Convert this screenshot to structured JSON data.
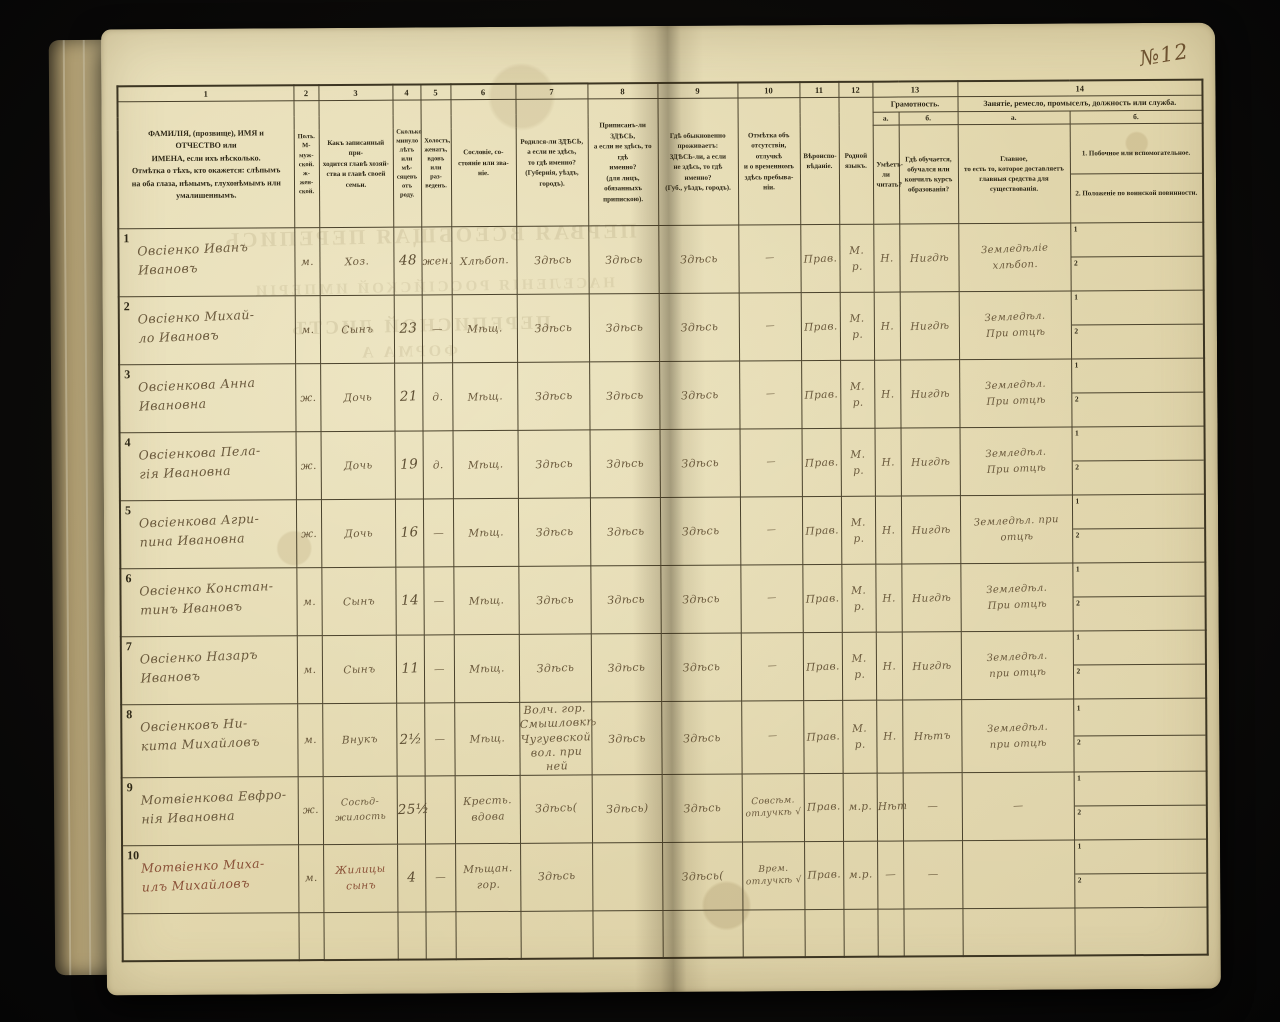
{
  "photo": {
    "page_number_annotation": "№12",
    "bleed_through_lines": {
      "l1": "ПЕРВАЯ ВСЕОБЩАЯ ПЕРЕПИСЬ",
      "l2": "НАСЕЛЕНІЯ РОССІЙСКОЙ ИМПЕРІИ",
      "l3": "ПЕРЕПИСНОЙ ЛИСТЪ",
      "l4": "ФОРМА А"
    }
  },
  "table": {
    "header": {
      "nums": {
        "c1": "1",
        "c2": "2",
        "c3": "3",
        "c4": "4",
        "c5": "5",
        "c6": "6",
        "c7": "7",
        "c8": "8",
        "c9": "9",
        "c10": "10",
        "c11": "11",
        "c12": "12",
        "c13": "13",
        "c14": "14"
      },
      "labels": {
        "c1": "ФАМИЛІЯ, (прозвище), ИМЯ и ОТЧЕСТВО или\nИМЕНА, если ихъ нѣсколько.\nОтмѣтка о тѣхъ, кто окажется: слѣпымъ\nна оба глаза, нѣмымъ, глухонѣмымъ или\nумалишеннымъ.",
        "c2": "Полъ.\nМ-муж-\nской.\nж-жен-\nской.",
        "c3": "Какъ записанный при-\nходится главѣ хозяй-\nства и главѣ своей\nсемьи.",
        "c4": "Сколько\nминуло\nлѣтъ\nили мѣ-\nсяцевъ\nотъ роду.",
        "c5": "Холостъ,\nженатъ,\nвдовъ\nили раз-\nведенъ.",
        "c6": "Сословіе, со-\nстояніе или зва-\nніе.",
        "c7": "Родился-ли ЗДѢСЬ,\nа если не здѣсь,\nто гдѣ именно?\n(Губернія, уѣздъ, городъ).",
        "c8": "Приписанъ-ли ЗДѢСЬ,\nа если не здѣсь, то гдѣ\nименно?\n(для лицъ, обязанныхъ\nприпискою).",
        "c9": "Гдѣ обыкновенно\nпроживаетъ:\nЗДѢСЬ-ли, а если\nне здѣсь, то гдѣ\nименно?\n(Губ., уѣздъ, городъ).",
        "c10": "Отмѣтка объ\nотсутствіи, отлучкѣ\nи о временномъ\nздѣсь пребыва-\nніи.",
        "c11": "Вѣроиспо-\nвѣданіе.",
        "c12": "Родной\nязыкъ."
      },
      "col13": {
        "group": "Грамотность.",
        "a_letter": "а.",
        "b_letter": "б.",
        "a_label": "Умѣетъ-\nли\nчитать?",
        "b_label": "Гдѣ обучается,\nобучался или\nкончилъ курсъ\nобразованія?"
      },
      "col14": {
        "group": "Занятіе, ремесло, промыселъ, должность или служба.",
        "a_letter": "а.",
        "b_letter": "б.",
        "a_label": "Главное,\nто есть то, которое доставляетъ\nглавныя средства для существованія.",
        "b_label_1": "1.  Побочное или вспомогательное.",
        "b_label_2": "2.  Положеніе по воинской повинности."
      }
    },
    "rows": [
      {
        "num": "1",
        "name": "Овсіенко Иванъ\nИвановъ",
        "sex": "м.",
        "relation": "Хоз.",
        "age": "48",
        "marital": "жен.",
        "estate": "Хлѣбоп.",
        "born": "Здѣсь",
        "registered": "Здѣсь",
        "resides": "Здѣсь",
        "absence": "—",
        "religion": "Прав.",
        "language": "М.\nр.",
        "reads": "Н.",
        "school": "Нигдѣ",
        "occupation": "Земледѣліе\nхлѣбоп.",
        "side1": "",
        "side2": ""
      },
      {
        "num": "2",
        "name": "Овсіенко Михай-\nло Ивановъ",
        "sex": "м.",
        "relation": "Сынъ",
        "age": "23",
        "marital": "—",
        "estate": "Мѣщ.",
        "born": "Здѣсь",
        "registered": "Здѣсь",
        "resides": "Здѣсь",
        "absence": "—",
        "religion": "Прав.",
        "language": "М.\nр.",
        "reads": "Н.",
        "school": "Нигдѣ",
        "occupation": "Земледѣл.\nПри отцѣ",
        "side1": "",
        "side2": ""
      },
      {
        "num": "3",
        "name": "Овсіенкова Анна\nИвановна",
        "sex": "ж.",
        "relation": "Дочь",
        "age": "21",
        "marital": "д.",
        "estate": "Мѣщ.",
        "born": "Здѣсь",
        "registered": "Здѣсь",
        "resides": "Здѣсь",
        "absence": "—",
        "religion": "Прав.",
        "language": "М.\nр.",
        "reads": "Н.",
        "school": "Нигдѣ",
        "occupation": "Земледѣл.\nПри отцѣ",
        "side1": "",
        "side2": ""
      },
      {
        "num": "4",
        "name": "Овсіенкова Пела-\nгія Ивановна",
        "sex": "ж.",
        "relation": "Дочь",
        "age": "19",
        "marital": "д.",
        "estate": "Мѣщ.",
        "born": "Здѣсь",
        "registered": "Здѣсь",
        "resides": "Здѣсь",
        "absence": "—",
        "religion": "Прав.",
        "language": "М.\nр.",
        "reads": "Н.",
        "school": "Нигдѣ",
        "occupation": "Земледѣл.\nПри отцѣ",
        "side1": "",
        "side2": ""
      },
      {
        "num": "5",
        "name": "Овсіенкова Агри-\nпина Ивановна",
        "sex": "ж.",
        "relation": "Дочь",
        "age": "16",
        "marital": "—",
        "estate": "Мѣщ.",
        "born": "Здѣсь",
        "registered": "Здѣсь",
        "resides": "Здѣсь",
        "absence": "—",
        "religion": "Прав.",
        "language": "М.\nр.",
        "reads": "Н.",
        "school": "Нигдѣ",
        "occupation": "Земледѣл. при\nотцѣ",
        "side1": "",
        "side2": ""
      },
      {
        "num": "6",
        "name": "Овсіенко Констан-\nтинъ Ивановъ",
        "sex": "м.",
        "relation": "Сынъ",
        "age": "14",
        "marital": "—",
        "estate": "Мѣщ.",
        "born": "Здѣсь",
        "registered": "Здѣсь",
        "resides": "Здѣсь",
        "absence": "—",
        "religion": "Прав.",
        "language": "М.\nр.",
        "reads": "Н.",
        "school": "Нигдѣ",
        "occupation": "Земледѣл.\nПри отцѣ",
        "side1": "",
        "side2": ""
      },
      {
        "num": "7",
        "name": "Овсіенко Назаръ\nИвановъ",
        "sex": "м.",
        "relation": "Сынъ",
        "age": "11",
        "marital": "—",
        "estate": "Мѣщ.",
        "born": "Здѣсь",
        "registered": "Здѣсь",
        "resides": "Здѣсь",
        "absence": "—",
        "religion": "Прав.",
        "language": "М.\nр.",
        "reads": "Н.",
        "school": "Нигдѣ",
        "occupation": "Земледѣл.\nпри отцѣ",
        "side1": "",
        "side2": ""
      },
      {
        "num": "8",
        "name": "Овсіенковъ Ни-\nкита Михайловъ",
        "sex": "м.",
        "relation": "Внукъ",
        "age": "2½",
        "marital": "—",
        "estate": "Мѣщ.",
        "born": "Волч. гор.\nСмышловкѣ\nЧугуевской\nвол. при ней",
        "registered": "Здѣсь",
        "resides": "Здѣсь",
        "absence": "—",
        "religion": "Прав.",
        "language": "М.\nр.",
        "reads": "Н.",
        "school": "Нѣтъ",
        "occupation": "Земледѣл.\nпри отцѣ",
        "side1": "",
        "side2": ""
      },
      {
        "num": "9",
        "name": "Мотвіенкова Евфро-\nнія Ивановна",
        "sex": "ж.",
        "relation": "Сосѣд-\nжилость",
        "age": "25½",
        "marital": "",
        "estate": "Кресть.\nвдова",
        "born": "Здѣсь(",
        "registered": "Здѣсь)",
        "resides": "Здѣсь",
        "absence": "Совсѣм.\nотлучкѣ √",
        "religion": "Прав.",
        "language": "м.р.",
        "reads": "Нѣт",
        "school": "—",
        "occupation": "—",
        "side1": "",
        "side2": ""
      },
      {
        "num": "10",
        "name": "Мотвіенко Миха-\nилъ Михайловъ",
        "sex": "м.",
        "relation": "Жилицы\nсынъ",
        "age": "4",
        "marital": "—",
        "estate": "Мѣщан.\nгор.",
        "born": "Здѣсь",
        "registered": "",
        "resides": "Здѣсь(",
        "absence": "Врем.\nотлучкѣ √",
        "religion": "Прав.",
        "language": "м.р.",
        "reads": "—",
        "school": "—",
        "occupation": "",
        "side1": "",
        "side2": ""
      }
    ]
  }
}
